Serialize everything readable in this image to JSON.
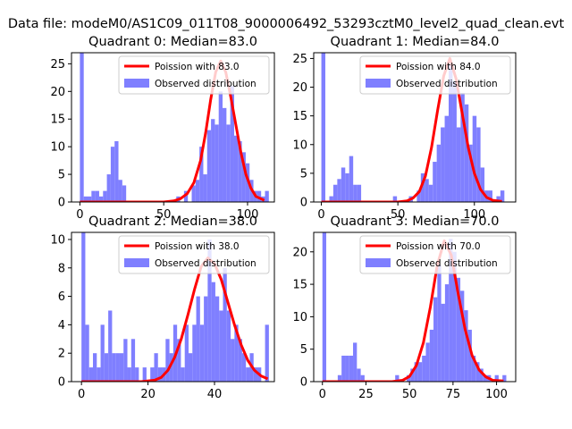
{
  "page": {
    "suptitle": "Data file: modeM0/AS1C09_011T08_9000006492_53293cztM0_level2_quad_clean.evt"
  },
  "colors": {
    "hist": "#7f7fff",
    "poisson": "#ff0000",
    "axis": "#000000"
  },
  "chart_data": [
    {
      "type": "bar",
      "title": "Quadrant 0: Median=83.0",
      "xlim": [
        -5,
        116
      ],
      "ylim": [
        0,
        27
      ],
      "xticks": [
        0,
        50,
        100
      ],
      "yticks": [
        0,
        5,
        10,
        15,
        20,
        25
      ],
      "bin_width": 2.3,
      "histogram": [
        {
          "x": 0,
          "y": 27
        },
        {
          "x": 2.3,
          "y": 1
        },
        {
          "x": 4.6,
          "y": 1
        },
        {
          "x": 6.9,
          "y": 2
        },
        {
          "x": 9.2,
          "y": 2
        },
        {
          "x": 11.5,
          "y": 1
        },
        {
          "x": 13.8,
          "y": 2
        },
        {
          "x": 16.1,
          "y": 5
        },
        {
          "x": 18.4,
          "y": 10
        },
        {
          "x": 20.7,
          "y": 11
        },
        {
          "x": 23.0,
          "y": 4
        },
        {
          "x": 25.3,
          "y": 3
        },
        {
          "x": 57.5,
          "y": 1
        },
        {
          "x": 62.1,
          "y": 2
        },
        {
          "x": 66.7,
          "y": 3
        },
        {
          "x": 69.0,
          "y": 4
        },
        {
          "x": 71.3,
          "y": 10
        },
        {
          "x": 73.6,
          "y": 5
        },
        {
          "x": 75.9,
          "y": 13
        },
        {
          "x": 78.2,
          "y": 15
        },
        {
          "x": 80.5,
          "y": 14
        },
        {
          "x": 82.8,
          "y": 20
        },
        {
          "x": 85.1,
          "y": 17
        },
        {
          "x": 87.4,
          "y": 14
        },
        {
          "x": 89.7,
          "y": 21
        },
        {
          "x": 92.0,
          "y": 12
        },
        {
          "x": 94.3,
          "y": 11
        },
        {
          "x": 96.6,
          "y": 9
        },
        {
          "x": 98.9,
          "y": 7
        },
        {
          "x": 101.2,
          "y": 4
        },
        {
          "x": 103.5,
          "y": 2
        },
        {
          "x": 105.8,
          "y": 2
        },
        {
          "x": 108.1,
          "y": 1
        },
        {
          "x": 110.4,
          "y": 2
        }
      ],
      "poisson_lambda": 83.0,
      "poisson_x": [
        0,
        50,
        56,
        60,
        64,
        68,
        72,
        75,
        78,
        81,
        84,
        87,
        90,
        93,
        96,
        99,
        102,
        105,
        110
      ],
      "poisson_y": [
        0,
        0,
        0.2,
        0.6,
        1.5,
        3.5,
        7.5,
        12.5,
        18.5,
        23.5,
        25.5,
        23.5,
        19,
        14,
        9,
        5,
        2.5,
        1,
        0.3
      ],
      "legend": [
        "Poission with 83.0",
        "Observed distribution"
      ]
    },
    {
      "type": "bar",
      "title": "Quadrant 1: Median=84.0",
      "xlim": [
        -5,
        127
      ],
      "ylim": [
        0,
        26
      ],
      "xticks": [
        0,
        50,
        100
      ],
      "yticks": [
        0,
        5,
        10,
        15,
        20,
        25
      ],
      "bin_width": 2.6,
      "histogram": [
        {
          "x": 0,
          "y": 26
        },
        {
          "x": 5.2,
          "y": 1
        },
        {
          "x": 7.8,
          "y": 3
        },
        {
          "x": 10.4,
          "y": 4
        },
        {
          "x": 13.0,
          "y": 6
        },
        {
          "x": 15.6,
          "y": 5
        },
        {
          "x": 18.2,
          "y": 8
        },
        {
          "x": 20.8,
          "y": 3
        },
        {
          "x": 23.4,
          "y": 3
        },
        {
          "x": 46.8,
          "y": 1
        },
        {
          "x": 57.2,
          "y": 1
        },
        {
          "x": 62.4,
          "y": 2
        },
        {
          "x": 65.0,
          "y": 5
        },
        {
          "x": 67.6,
          "y": 4
        },
        {
          "x": 70.2,
          "y": 3
        },
        {
          "x": 72.8,
          "y": 7
        },
        {
          "x": 75.4,
          "y": 10
        },
        {
          "x": 78.0,
          "y": 13
        },
        {
          "x": 80.6,
          "y": 15
        },
        {
          "x": 83.2,
          "y": 24
        },
        {
          "x": 85.8,
          "y": 21
        },
        {
          "x": 88.4,
          "y": 13
        },
        {
          "x": 91.0,
          "y": 19
        },
        {
          "x": 93.6,
          "y": 17
        },
        {
          "x": 96.2,
          "y": 10
        },
        {
          "x": 98.8,
          "y": 15
        },
        {
          "x": 101.4,
          "y": 13
        },
        {
          "x": 104.0,
          "y": 6
        },
        {
          "x": 106.6,
          "y": 2
        },
        {
          "x": 109.2,
          "y": 2
        },
        {
          "x": 114.4,
          "y": 1
        },
        {
          "x": 117.0,
          "y": 2
        }
      ],
      "poisson_lambda": 84.0,
      "poisson_x": [
        0,
        50,
        56,
        60,
        64,
        68,
        72,
        76,
        80,
        84,
        88,
        92,
        96,
        100,
        104,
        108,
        112,
        118
      ],
      "poisson_y": [
        0,
        0,
        0.2,
        0.7,
        1.8,
        4.5,
        9.5,
        16,
        22,
        25,
        21.5,
        15.5,
        9.5,
        5,
        2.2,
        0.8,
        0.3,
        0.1
      ],
      "legend": [
        "Poission with 84.0",
        "Observed distribution"
      ]
    },
    {
      "type": "bar",
      "title": "Quadrant 2: Median=38.0",
      "xlim": [
        -3,
        58
      ],
      "ylim": [
        0,
        10.5
      ],
      "xticks": [
        0,
        20,
        40
      ],
      "yticks": [
        0,
        2,
        4,
        6,
        8,
        10
      ],
      "bin_width": 1.15,
      "histogram": [
        {
          "x": 0,
          "y": 10.5
        },
        {
          "x": 1.15,
          "y": 4
        },
        {
          "x": 2.3,
          "y": 1
        },
        {
          "x": 3.45,
          "y": 2
        },
        {
          "x": 4.6,
          "y": 1
        },
        {
          "x": 5.75,
          "y": 4
        },
        {
          "x": 6.9,
          "y": 2
        },
        {
          "x": 8.05,
          "y": 5
        },
        {
          "x": 9.2,
          "y": 2
        },
        {
          "x": 10.35,
          "y": 2
        },
        {
          "x": 11.5,
          "y": 2
        },
        {
          "x": 12.65,
          "y": 3
        },
        {
          "x": 13.8,
          "y": 1
        },
        {
          "x": 14.95,
          "y": 3
        },
        {
          "x": 16.1,
          "y": 1
        },
        {
          "x": 18.4,
          "y": 1
        },
        {
          "x": 20.7,
          "y": 1
        },
        {
          "x": 21.85,
          "y": 2
        },
        {
          "x": 23.0,
          "y": 1
        },
        {
          "x": 24.15,
          "y": 1
        },
        {
          "x": 25.3,
          "y": 3
        },
        {
          "x": 26.45,
          "y": 2
        },
        {
          "x": 27.6,
          "y": 4
        },
        {
          "x": 28.75,
          "y": 3
        },
        {
          "x": 29.9,
          "y": 1
        },
        {
          "x": 31.05,
          "y": 4
        },
        {
          "x": 32.2,
          "y": 2
        },
        {
          "x": 33.35,
          "y": 4
        },
        {
          "x": 34.5,
          "y": 6
        },
        {
          "x": 35.65,
          "y": 4
        },
        {
          "x": 36.8,
          "y": 6
        },
        {
          "x": 37.95,
          "y": 10
        },
        {
          "x": 39.1,
          "y": 7
        },
        {
          "x": 40.25,
          "y": 6
        },
        {
          "x": 41.4,
          "y": 5
        },
        {
          "x": 42.55,
          "y": 8
        },
        {
          "x": 43.7,
          "y": 5
        },
        {
          "x": 44.85,
          "y": 3
        },
        {
          "x": 46.0,
          "y": 4
        },
        {
          "x": 47.15,
          "y": 3
        },
        {
          "x": 48.3,
          "y": 2
        },
        {
          "x": 49.45,
          "y": 1
        },
        {
          "x": 50.6,
          "y": 2
        },
        {
          "x": 51.75,
          "y": 1
        },
        {
          "x": 52.9,
          "y": 1
        },
        {
          "x": 55.2,
          "y": 4
        }
      ],
      "poisson_lambda": 38.0,
      "poisson_x": [
        0,
        18,
        22,
        24,
        26,
        28,
        30,
        32,
        34,
        36,
        38,
        40,
        42,
        44,
        46,
        48,
        50,
        52,
        54,
        56
      ],
      "poisson_y": [
        0,
        0,
        0.1,
        0.3,
        0.8,
        1.7,
        3.0,
        4.7,
        6.5,
        8.1,
        8.7,
        8.3,
        7.2,
        5.6,
        4.0,
        2.6,
        1.5,
        0.8,
        0.4,
        0.2
      ],
      "legend": [
        "Poission with 38.0",
        "Observed distribution"
      ]
    },
    {
      "type": "bar",
      "title": "Quadrant 3: Median=70.0",
      "xlim": [
        -5,
        111
      ],
      "ylim": [
        0,
        23
      ],
      "xticks": [
        0,
        25,
        50,
        75,
        100
      ],
      "yticks": [
        0,
        5,
        10,
        15,
        20
      ],
      "bin_width": 2.2,
      "histogram": [
        {
          "x": 0,
          "y": 23
        },
        {
          "x": 8.8,
          "y": 1
        },
        {
          "x": 11.0,
          "y": 4
        },
        {
          "x": 13.2,
          "y": 4
        },
        {
          "x": 15.4,
          "y": 4
        },
        {
          "x": 17.6,
          "y": 6
        },
        {
          "x": 19.8,
          "y": 2
        },
        {
          "x": 22.0,
          "y": 1
        },
        {
          "x": 41.8,
          "y": 1
        },
        {
          "x": 48.4,
          "y": 1
        },
        {
          "x": 50.6,
          "y": 2
        },
        {
          "x": 52.8,
          "y": 3
        },
        {
          "x": 55.0,
          "y": 3
        },
        {
          "x": 57.2,
          "y": 4
        },
        {
          "x": 59.4,
          "y": 6
        },
        {
          "x": 61.6,
          "y": 8
        },
        {
          "x": 63.8,
          "y": 13
        },
        {
          "x": 66.0,
          "y": 18
        },
        {
          "x": 68.2,
          "y": 12
        },
        {
          "x": 70.4,
          "y": 15
        },
        {
          "x": 72.6,
          "y": 22
        },
        {
          "x": 74.8,
          "y": 20
        },
        {
          "x": 77.0,
          "y": 16
        },
        {
          "x": 79.2,
          "y": 14
        },
        {
          "x": 81.4,
          "y": 11
        },
        {
          "x": 83.6,
          "y": 8
        },
        {
          "x": 85.8,
          "y": 4
        },
        {
          "x": 88.0,
          "y": 3
        },
        {
          "x": 90.2,
          "y": 2
        },
        {
          "x": 92.4,
          "y": 1
        },
        {
          "x": 94.6,
          "y": 1
        },
        {
          "x": 99.0,
          "y": 1
        },
        {
          "x": 103.4,
          "y": 1
        }
      ],
      "poisson_lambda": 70.0,
      "poisson_x": [
        0,
        40,
        46,
        50,
        54,
        58,
        62,
        66,
        70,
        74,
        78,
        82,
        86,
        90,
        94,
        98,
        104
      ],
      "poisson_y": [
        0,
        0,
        0.2,
        0.8,
        2.5,
        6,
        11.5,
        18,
        21.7,
        19.5,
        13.5,
        8,
        4,
        1.8,
        0.7,
        0.2,
        0.1
      ],
      "legend": [
        "Poission with 70.0",
        "Observed distribution"
      ]
    }
  ]
}
